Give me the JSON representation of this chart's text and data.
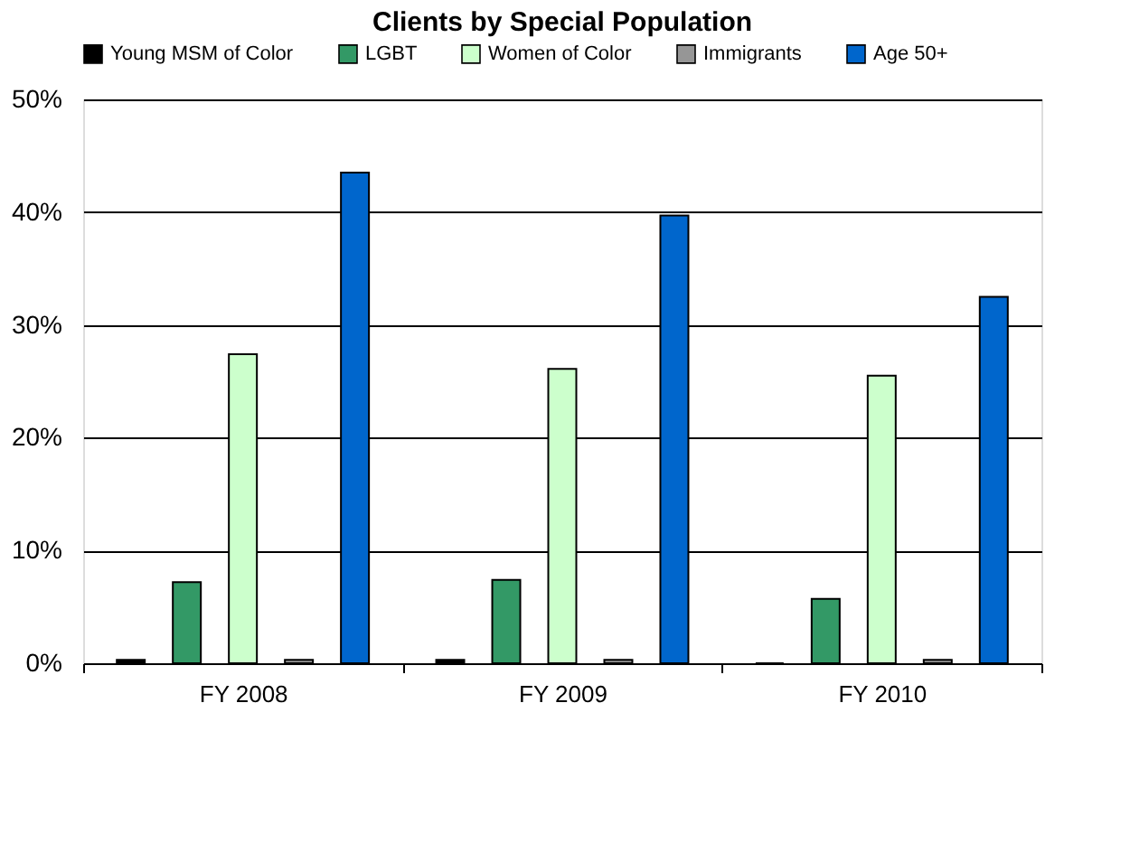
{
  "chart_data": {
    "type": "bar",
    "title": "Clients by Special Population",
    "categories": [
      "FY 2008",
      "FY 2009",
      "FY 2010"
    ],
    "series": [
      {
        "name": "Young MSM of Color",
        "color": "#000000",
        "values": [
          0.3,
          0.3,
          0
        ]
      },
      {
        "name": "LGBT",
        "color": "#339966",
        "values": [
          7.2,
          7.4,
          5.7
        ]
      },
      {
        "name": "Women of Color",
        "color": "#ccffcc",
        "values": [
          27.4,
          26.1,
          25.5
        ]
      },
      {
        "name": "Immigrants",
        "color": "#969696",
        "values": [
          0.3,
          0.3,
          0.3
        ]
      },
      {
        "name": "Age 50+",
        "color": "#0066cc",
        "values": [
          43.5,
          39.7,
          32.5
        ]
      }
    ],
    "ylim": [
      0,
      50
    ],
    "yticks": [
      {
        "value": 0,
        "label": "0%"
      },
      {
        "value": 10,
        "label": "10%"
      },
      {
        "value": 20,
        "label": "20%"
      },
      {
        "value": 30,
        "label": "30%"
      },
      {
        "value": 40,
        "label": "40%"
      },
      {
        "value": 50,
        "label": "50%"
      }
    ],
    "grid": "y",
    "legend": "top"
  }
}
